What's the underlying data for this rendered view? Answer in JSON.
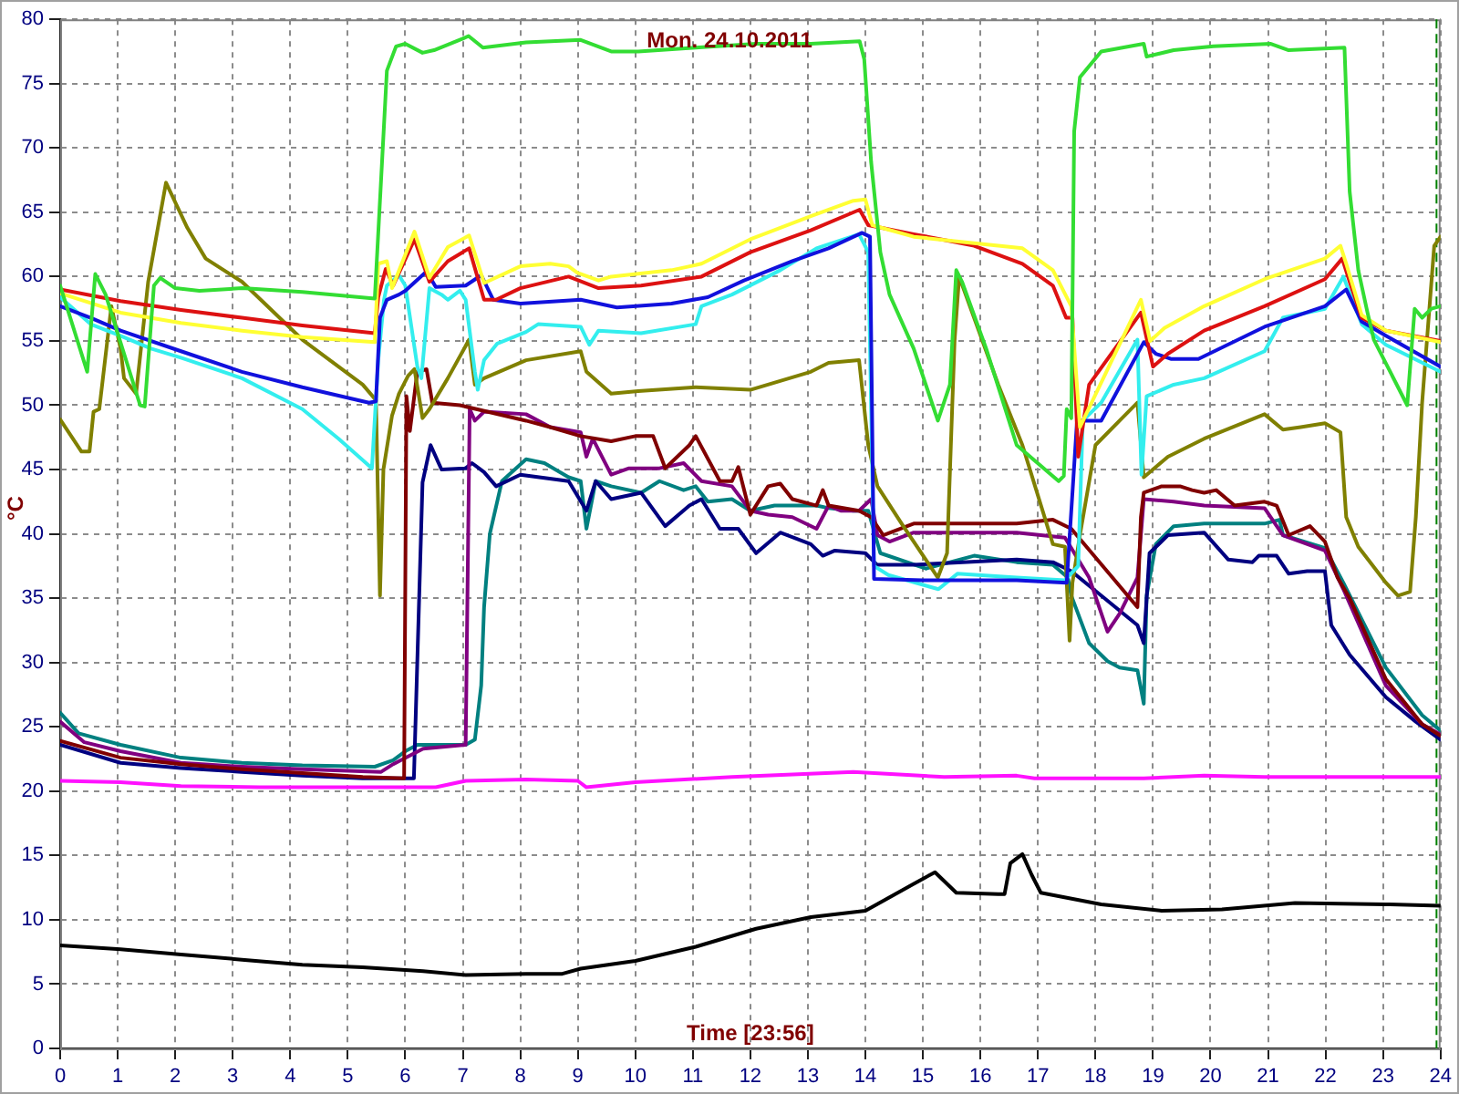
{
  "chart_data": {
    "type": "line",
    "title": "Mon. 24.10.2011",
    "xlabel": "Time [23:56]",
    "ylabel": "°C",
    "xlim": [
      0,
      24
    ],
    "xticks": [
      0,
      1,
      2,
      3,
      4,
      5,
      6,
      7,
      8,
      9,
      10,
      11,
      12,
      13,
      14,
      15,
      16,
      17,
      18,
      19,
      20,
      21,
      22,
      23,
      24
    ],
    "ylim": [
      0,
      80
    ],
    "yticks": [
      0,
      5,
      10,
      15,
      20,
      25,
      30,
      35,
      40,
      45,
      50,
      55,
      60,
      65,
      70,
      75,
      80
    ],
    "grid": true,
    "legend": false,
    "ref_lines": [
      {
        "axis": "x",
        "value": 23.93,
        "color": "#008000",
        "line_style": "dashed"
      }
    ],
    "series": [
      {
        "color": "#33dd33",
        "x": [
          0,
          0.47,
          0.61,
          0.79,
          1.39,
          1.47,
          1.63,
          1.74,
          2,
          2.42,
          3.16,
          4.21,
          5.47,
          5.68,
          5.84,
          6,
          6.3,
          6.5,
          7,
          7.1,
          7.35,
          8.1,
          9.05,
          9.58,
          10.05,
          11.05,
          12.1,
          13.05,
          13.9,
          13.98,
          14.1,
          14.26,
          14.42,
          14.84,
          15.26,
          15.47,
          15.58,
          15.68,
          16.1,
          16.63,
          17.36,
          17.45,
          17.5,
          17.58,
          17.63,
          17.73,
          18.1,
          18.84,
          18.89,
          19.36,
          20.05,
          21.05,
          21.36,
          22.33,
          22.42,
          22.57,
          22.73,
          22.84,
          23.42,
          23.55,
          23.68,
          23.84,
          24
        ],
        "values": [
          59.3,
          52.6,
          60.2,
          58.6,
          50.0,
          49.9,
          59.3,
          59.9,
          59.1,
          58.9,
          59.1,
          58.8,
          58.3,
          76.0,
          77.9,
          78.1,
          77.4,
          77.6,
          78.5,
          78.7,
          77.8,
          78.2,
          78.4,
          77.5,
          77.5,
          77.8,
          78.1,
          78.1,
          78.3,
          76.9,
          68.9,
          61.9,
          58.6,
          54.4,
          48.8,
          51.6,
          60.5,
          59.6,
          54.4,
          46.9,
          44.1,
          44.5,
          49.7,
          49.0,
          71.3,
          75.5,
          77.5,
          78.1,
          77.1,
          77.6,
          77.9,
          78.1,
          77.6,
          77.8,
          66.6,
          60.5,
          57.2,
          55.1,
          50.0,
          57.5,
          56.8,
          57.5,
          57.7
        ]
      },
      {
        "color": "#ffff33",
        "x": [
          0,
          1.05,
          2.1,
          3.16,
          4.21,
          5.47,
          5.53,
          5.68,
          5.77,
          6.16,
          6.42,
          6.74,
          7.11,
          7.37,
          8,
          8.52,
          8.84,
          8.99,
          9.36,
          9.58,
          10.63,
          11.15,
          12,
          13.05,
          13.79,
          14,
          14.12,
          14.84,
          15.89,
          16.73,
          17.26,
          17.58,
          17.73,
          18.79,
          18.95,
          19.2,
          19.89,
          20.94,
          21.99,
          22.26,
          22.36,
          22.63,
          23.05,
          24
        ],
        "values": [
          58.7,
          57.2,
          56.4,
          55.8,
          55.3,
          54.9,
          61.0,
          61.2,
          59.1,
          63.5,
          59.9,
          62.3,
          63.2,
          59.5,
          60.8,
          61.0,
          60.8,
          60.3,
          59.7,
          60.0,
          60.5,
          61.0,
          62.9,
          64.7,
          65.9,
          66.0,
          64.0,
          63.1,
          62.6,
          62.2,
          60.5,
          57.7,
          48.3,
          58.2,
          55.0,
          56.0,
          57.7,
          59.8,
          61.4,
          62.4,
          61.0,
          57.0,
          55.8,
          54.9
        ]
      },
      {
        "color": "#dd1111",
        "x": [
          0,
          1.05,
          2.1,
          3.16,
          4.21,
          5.47,
          5.53,
          5.66,
          5.79,
          6.16,
          6.42,
          6.74,
          7.11,
          7.37,
          7.58,
          8,
          8.84,
          9.36,
          10.1,
          11.15,
          12,
          13.05,
          13.9,
          14.05,
          14.84,
          15.89,
          16.73,
          17.26,
          17.49,
          17.6,
          17.7,
          17.89,
          18.79,
          19,
          19.26,
          19.89,
          20.94,
          21.99,
          22.29,
          22.42,
          22.63,
          23.05,
          24
        ],
        "values": [
          59.0,
          58.1,
          57.4,
          56.8,
          56.2,
          55.6,
          58.4,
          60.6,
          59.3,
          62.9,
          59.6,
          61.2,
          62.2,
          58.2,
          58.2,
          59.1,
          60.0,
          59.1,
          59.3,
          60.0,
          61.9,
          63.6,
          65.2,
          64.0,
          63.3,
          62.4,
          61.0,
          59.3,
          56.8,
          56.8,
          46.0,
          51.6,
          57.2,
          53.0,
          54.0,
          55.8,
          57.7,
          59.8,
          61.4,
          59.6,
          56.8,
          55.8,
          55.0
        ]
      },
      {
        "color": "#1111dd",
        "x": [
          0,
          0.53,
          1.05,
          2.1,
          3.16,
          4.21,
          5.37,
          5.49,
          5.56,
          5.68,
          5.89,
          6,
          6.37,
          6.53,
          7.05,
          7.32,
          7.53,
          8,
          9.05,
          9.68,
          10.63,
          11.26,
          11.89,
          12.73,
          13.36,
          13.94,
          14.08,
          14.15,
          15,
          16.63,
          17.5,
          17.68,
          18.1,
          18.84,
          19.05,
          19.31,
          19.79,
          20.94,
          21.99,
          22.36,
          22.63,
          23.05,
          24
        ],
        "values": [
          57.7,
          56.8,
          55.8,
          54.2,
          52.6,
          51.4,
          50.2,
          50.3,
          56.8,
          58.2,
          58.6,
          58.9,
          60.4,
          59.2,
          59.3,
          60.1,
          58.2,
          57.9,
          58.2,
          57.6,
          57.9,
          58.4,
          59.7,
          61.2,
          62.2,
          63.4,
          63.1,
          36.5,
          36.4,
          36.4,
          36.2,
          48.8,
          48.8,
          54.9,
          54.0,
          53.6,
          53.6,
          56.1,
          57.7,
          59.0,
          56.5,
          55.4,
          53.0
        ]
      },
      {
        "color": "#33eeee",
        "x": [
          0,
          0.53,
          1.05,
          1.58,
          2.1,
          3.16,
          4.21,
          4.84,
          5.42,
          5.53,
          5.63,
          5.68,
          5.89,
          6,
          6.21,
          6.28,
          6.42,
          6.63,
          6.74,
          6.95,
          7.05,
          7.21,
          7.26,
          7.37,
          7.6,
          8.1,
          8.31,
          9.05,
          9.2,
          9.36,
          10.1,
          11.05,
          11.15,
          11.68,
          12.52,
          13.15,
          13.89,
          14.05,
          14.15,
          14.4,
          15.27,
          15.6,
          16.63,
          17.47,
          17.7,
          17.78,
          18.1,
          18.73,
          18.8,
          18.89,
          19.36,
          19.89,
          20.94,
          21.26,
          21.99,
          22.31,
          22.63,
          23.05,
          24
        ],
        "values": [
          58.4,
          56.3,
          55.4,
          54.4,
          53.7,
          52.1,
          49.7,
          47.4,
          45.1,
          53.5,
          58.2,
          59.3,
          60.1,
          59.3,
          53.0,
          52.1,
          59.1,
          58.6,
          58.2,
          58.9,
          58.2,
          52.6,
          51.2,
          53.5,
          54.8,
          55.7,
          56.3,
          56.1,
          54.7,
          55.8,
          55.6,
          56.3,
          57.7,
          58.6,
          60.5,
          62.2,
          63.3,
          61.9,
          37.5,
          36.8,
          35.7,
          36.9,
          36.6,
          36.4,
          37.5,
          48.8,
          50.2,
          55.1,
          44.6,
          50.7,
          51.6,
          52.1,
          54.2,
          56.8,
          57.5,
          60.0,
          56.3,
          54.7,
          52.6
        ]
      },
      {
        "color": "#808000",
        "x": [
          0,
          0.37,
          0.51,
          0.58,
          0.68,
          0.89,
          1.05,
          1.11,
          1.32,
          1.53,
          1.84,
          2.21,
          2.53,
          3.16,
          4.21,
          5.26,
          5.49,
          5.56,
          5.62,
          5.77,
          5.89,
          6.05,
          6.16,
          6.3,
          6.42,
          6.74,
          7.11,
          7.21,
          7.37,
          8.1,
          9.05,
          9.15,
          9.58,
          10.05,
          11.05,
          12,
          13.05,
          13.36,
          13.89,
          14.05,
          14.21,
          14.63,
          15.05,
          15.26,
          15.42,
          15.55,
          15.63,
          15.89,
          16.31,
          16.73,
          17.26,
          17.47,
          17.55,
          17.6,
          17.73,
          18,
          18.42,
          18.73,
          18.84,
          19.26,
          19.89,
          20.94,
          21.26,
          21.57,
          21.99,
          22.26,
          22.36,
          22.57,
          23.05,
          23.26,
          23.47,
          23.57,
          23.68,
          23.89,
          24
        ],
        "values": [
          48.9,
          46.4,
          46.4,
          49.5,
          49.7,
          57.7,
          54.4,
          52.1,
          50.9,
          59.6,
          67.3,
          63.8,
          61.4,
          59.6,
          55.1,
          51.6,
          50.4,
          35.2,
          45.0,
          49.2,
          50.9,
          52.3,
          52.8,
          49.0,
          49.7,
          52.1,
          55.1,
          51.6,
          52.1,
          53.5,
          54.2,
          52.6,
          50.9,
          51.1,
          51.4,
          51.2,
          52.6,
          53.3,
          53.5,
          46.9,
          43.7,
          40.8,
          38.0,
          36.6,
          38.5,
          55.0,
          60.0,
          56.8,
          51.6,
          46.9,
          39.2,
          39.0,
          31.7,
          36.2,
          39.9,
          46.9,
          48.8,
          50.2,
          44.4,
          46.0,
          47.4,
          49.3,
          48.1,
          48.3,
          48.6,
          47.9,
          41.3,
          39.0,
          36.2,
          35.2,
          35.5,
          41.3,
          50.2,
          62.4,
          63.1
        ]
      },
      {
        "color": "#800000",
        "x": [
          0,
          1.05,
          2.1,
          3.16,
          4.21,
          5.26,
          5.98,
          6.02,
          6.08,
          6.21,
          6.37,
          6.47,
          6.95,
          8.1,
          8.52,
          9.05,
          9.58,
          10,
          10.31,
          10.52,
          10.94,
          11.05,
          11.47,
          11.68,
          11.79,
          12,
          12.31,
          12.52,
          12.73,
          13.15,
          13.26,
          13.36,
          13.89,
          14.1,
          14.31,
          14.84,
          16.63,
          17.26,
          17.58,
          18.73,
          18.79,
          18.84,
          19.15,
          19.47,
          19.68,
          19.89,
          20.1,
          20.42,
          20.94,
          21.15,
          21.36,
          21.73,
          21.99,
          22.21,
          22.42,
          23.05,
          23.68,
          24
        ],
        "values": [
          23.9,
          22.6,
          22.1,
          21.7,
          21.4,
          21.1,
          21.0,
          50.7,
          48.0,
          52.6,
          52.8,
          50.2,
          50.0,
          48.8,
          48.3,
          47.6,
          47.2,
          47.6,
          47.6,
          45.1,
          46.9,
          47.6,
          44.1,
          44.1,
          45.2,
          41.5,
          43.7,
          43.9,
          42.7,
          42.2,
          43.4,
          42.2,
          41.8,
          41.3,
          39.9,
          40.8,
          40.8,
          41.1,
          40.4,
          34.3,
          41.3,
          43.2,
          43.7,
          43.7,
          43.4,
          43.2,
          43.4,
          42.2,
          42.5,
          42.2,
          39.9,
          40.6,
          39.4,
          36.6,
          35.0,
          28.7,
          25.2,
          24.3
        ]
      },
      {
        "color": "#800080",
        "x": [
          0,
          0.42,
          1.05,
          2.1,
          3.16,
          4.21,
          5.58,
          5.79,
          6.31,
          7.05,
          7.12,
          7.21,
          7.37,
          8.1,
          8.52,
          9.05,
          9.15,
          9.26,
          9.58,
          9.89,
          10.42,
          10.84,
          11.15,
          11.68,
          12,
          12.31,
          12.73,
          13.15,
          13.36,
          13.57,
          13.89,
          14.1,
          14.21,
          14.42,
          14.84,
          16.63,
          17.47,
          17.89,
          18.21,
          18.42,
          18.73,
          18.84,
          19.36,
          19.89,
          20.94,
          21.26,
          21.99,
          22.31,
          23.05,
          23.68,
          24
        ],
        "values": [
          25.4,
          23.8,
          23.1,
          22.2,
          21.9,
          21.7,
          21.5,
          22.1,
          23.3,
          23.6,
          49.7,
          48.8,
          49.5,
          49.3,
          48.3,
          47.9,
          46.0,
          47.4,
          44.6,
          45.1,
          45.1,
          45.5,
          44.1,
          43.7,
          41.8,
          41.5,
          41.3,
          40.4,
          42.2,
          41.8,
          41.8,
          42.7,
          39.9,
          39.4,
          40.1,
          40.1,
          39.7,
          36.6,
          32.4,
          33.8,
          36.6,
          42.7,
          42.5,
          42.2,
          42.0,
          39.9,
          38.7,
          35.7,
          28.2,
          25.2,
          24.4
        ]
      },
      {
        "color": "#000080",
        "x": [
          0,
          1.05,
          2.1,
          3.16,
          4.21,
          5.26,
          6.15,
          6.3,
          6.44,
          6.63,
          7.05,
          7.16,
          7.37,
          7.58,
          8,
          8.84,
          9.15,
          9.31,
          9.58,
          10.1,
          10.52,
          10.94,
          11.15,
          11.47,
          11.79,
          12.1,
          12.52,
          13.05,
          13.26,
          13.47,
          14,
          14.2,
          14.84,
          16.63,
          17.26,
          17.58,
          18.73,
          18.84,
          18.94,
          19.26,
          19.89,
          20.31,
          20.73,
          20.84,
          21.15,
          21.36,
          21.68,
          21.99,
          22.1,
          22.42,
          23.05,
          23.57,
          24
        ],
        "values": [
          23.6,
          22.2,
          21.8,
          21.5,
          21.2,
          21.0,
          21.0,
          44.0,
          46.9,
          45.0,
          45.1,
          45.5,
          44.8,
          43.7,
          44.6,
          44.1,
          41.8,
          44.1,
          42.7,
          43.2,
          40.6,
          42.2,
          42.7,
          40.4,
          40.4,
          38.5,
          40.1,
          39.2,
          38.3,
          38.7,
          38.5,
          37.6,
          37.6,
          38.0,
          37.8,
          37.1,
          32.9,
          31.5,
          38.5,
          39.9,
          40.1,
          38.0,
          37.8,
          38.3,
          38.3,
          36.9,
          37.1,
          37.1,
          32.9,
          30.6,
          27.3,
          25.4,
          24.0
        ]
      },
      {
        "color": "#008080",
        "x": [
          0,
          0.32,
          1.05,
          2.1,
          3.16,
          4.21,
          5.47,
          5.79,
          6,
          6.21,
          6.53,
          7.05,
          7.21,
          7.32,
          7.37,
          7.47,
          7.68,
          8.1,
          8.42,
          8.84,
          9.05,
          9.15,
          9.31,
          9.58,
          10.1,
          10.42,
          10.84,
          11.05,
          11.26,
          11.68,
          12,
          12.42,
          13.15,
          13.36,
          13.79,
          14.05,
          14.26,
          15.05,
          15.89,
          16.63,
          17.26,
          17.52,
          17.58,
          17.89,
          18.21,
          18.42,
          18.73,
          18.84,
          18.89,
          19.05,
          19.36,
          19.89,
          20.94,
          21.2,
          21.26,
          21.99,
          22.31,
          23.05,
          23.68,
          24
        ],
        "values": [
          26.1,
          24.5,
          23.6,
          22.6,
          22.2,
          22.0,
          21.9,
          22.4,
          23.1,
          23.6,
          23.6,
          23.6,
          24.0,
          28.2,
          34.3,
          40.0,
          44.1,
          45.8,
          45.5,
          44.4,
          44.1,
          40.4,
          44.1,
          43.7,
          43.2,
          44.1,
          43.4,
          43.7,
          42.5,
          42.7,
          41.8,
          42.2,
          42.2,
          42.0,
          41.8,
          41.8,
          38.5,
          37.3,
          38.3,
          37.8,
          37.6,
          36.6,
          35.2,
          31.5,
          30.1,
          29.6,
          29.4,
          26.8,
          35.2,
          39.2,
          40.6,
          40.8,
          40.8,
          41.1,
          39.9,
          38.9,
          36.2,
          29.6,
          25.9,
          24.7
        ]
      },
      {
        "color": "#ff11ff",
        "x": [
          0,
          1.05,
          2.1,
          3.47,
          5.26,
          6.53,
          7.05,
          8.1,
          9,
          9.15,
          10,
          11.68,
          13.79,
          15.37,
          16.63,
          16.94,
          18.84,
          19.89,
          20.94,
          24
        ],
        "values": [
          20.8,
          20.7,
          20.4,
          20.3,
          20.3,
          20.3,
          20.8,
          20.9,
          20.8,
          20.3,
          20.7,
          21.1,
          21.5,
          21.1,
          21.2,
          21.0,
          21.0,
          21.2,
          21.1,
          21.1
        ]
      },
      {
        "color": "#000000",
        "x": [
          0,
          1.05,
          2.1,
          3.16,
          4.21,
          5.26,
          6.31,
          7.05,
          8.1,
          8.73,
          9.05,
          10,
          11.05,
          12.1,
          13.05,
          14,
          14.84,
          15.21,
          15.58,
          16.31,
          16.42,
          16.52,
          16.73,
          16.89,
          17.05,
          18.1,
          19.15,
          20.2,
          21.47,
          23.05,
          24
        ],
        "values": [
          8.0,
          7.7,
          7.3,
          6.9,
          6.5,
          6.3,
          6.0,
          5.7,
          5.8,
          5.8,
          6.2,
          6.8,
          7.9,
          9.3,
          10.2,
          10.7,
          12.8,
          13.7,
          12.1,
          12.0,
          12.0,
          14.4,
          15.1,
          13.5,
          12.1,
          11.2,
          10.7,
          10.8,
          11.3,
          11.2,
          11.1
        ]
      }
    ]
  }
}
